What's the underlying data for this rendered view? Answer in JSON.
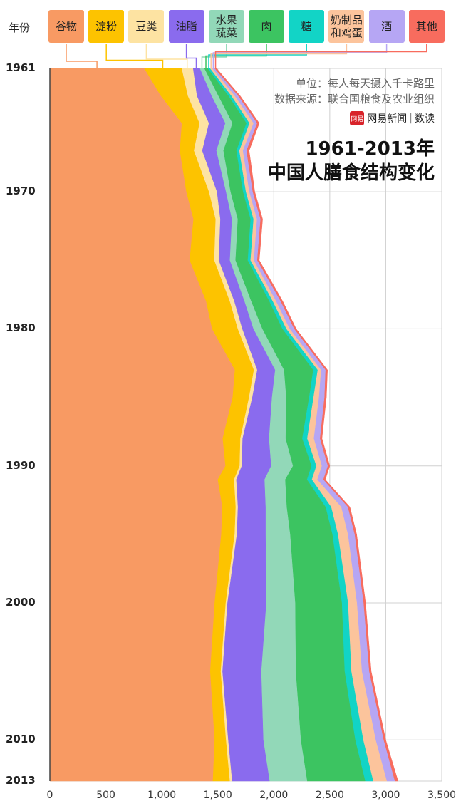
{
  "legend_title": "年份",
  "unit_text": "单位：每人每天摄入千卡路里",
  "source_text": "数据来源：联合国粮食及农业组织",
  "brand": {
    "logo": "网易",
    "name": "网易新闻",
    "column": "数读"
  },
  "title_line1": "1961-2013年",
  "title_line2": "中国人膳食结构变化",
  "chart_data": {
    "type": "area",
    "orientation": "horizontal-stacked",
    "title": "1961-2013年 中国人膳食结构变化",
    "unit": "每人每天摄入千卡路里",
    "y_ticks": [
      "1961",
      "1970",
      "1980",
      "1990",
      "2000",
      "2010",
      "2013"
    ],
    "x_ticks": [
      "0",
      "500",
      "1,000",
      "1,500",
      "2,000",
      "2,500",
      "3,000",
      "3,500"
    ],
    "xlim": [
      0,
      3500
    ],
    "ylim": [
      1961,
      2013
    ],
    "grid": true,
    "legend_position": "top",
    "series": [
      {
        "name": "谷物",
        "color": "#F89A63"
      },
      {
        "name": "淀粉",
        "color": "#FDC300"
      },
      {
        "name": "豆类",
        "color": "#FDE3A2"
      },
      {
        "name": "油脂",
        "color": "#8A6BEE"
      },
      {
        "name": "水果\n蔬菜",
        "color": "#92D8B8"
      },
      {
        "name": "肉",
        "color": "#3CC461"
      },
      {
        "name": "糖",
        "color": "#12D4C6"
      },
      {
        "name": "奶制品\n和鸡蛋",
        "color": "#FCC49C"
      },
      {
        "name": "酒",
        "color": "#B6A6F4"
      },
      {
        "name": "其他",
        "color": "#F86C5E"
      }
    ],
    "years": [
      1961,
      1963,
      1965,
      1967,
      1970,
      1972,
      1975,
      1978,
      1980,
      1983,
      1985,
      1988,
      1990,
      1991,
      1993,
      1995,
      2000,
      2005,
      2010,
      2013
    ],
    "totals": [
      1490,
      1700,
      1870,
      1780,
      1830,
      1900,
      1870,
      2080,
      2200,
      2480,
      2470,
      2430,
      2500,
      2460,
      2680,
      2740,
      2820,
      2870,
      3000,
      3110
    ],
    "values": [
      [
        830,
        980,
        1120,
        1100,
        1200,
        1230,
        1250,
        1380,
        1450,
        1650,
        1670,
        1560,
        1610,
        1540,
        1550,
        1540,
        1480,
        1440,
        1450,
        1430
      ],
      [
        330,
        240,
        150,
        120,
        200,
        190,
        220,
        210,
        230,
        170,
        150,
        160,
        130,
        150,
        120,
        120,
        100,
        95,
        100,
        150
      ],
      [
        100,
        80,
        80,
        70,
        70,
        40,
        40,
        40,
        40,
        30,
        30,
        20,
        20,
        20,
        20,
        20,
        15,
        15,
        20,
        20
      ],
      [
        60,
        130,
        140,
        120,
        80,
        100,
        100,
        90,
        100,
        160,
        180,
        240,
        270,
        260,
        250,
        260,
        350,
        350,
        310,
        330
      ],
      [
        40,
        60,
        60,
        60,
        40,
        50,
        50,
        60,
        80,
        80,
        130,
        150,
        200,
        190,
        190,
        220,
        260,
        310,
        330,
        330
      ],
      [
        30,
        90,
        120,
        110,
        110,
        110,
        110,
        160,
        180,
        260,
        210,
        150,
        170,
        200,
        350,
        380,
        420,
        440,
        480,
        510
      ],
      [
        20,
        25,
        25,
        25,
        25,
        25,
        25,
        30,
        35,
        40,
        40,
        45,
        45,
        45,
        50,
        50,
        55,
        60,
        70,
        70
      ],
      [
        20,
        30,
        35,
        30,
        30,
        30,
        30,
        30,
        30,
        30,
        50,
        60,
        50,
        50,
        90,
        90,
        80,
        95,
        110,
        120
      ],
      [
        20,
        30,
        30,
        30,
        30,
        30,
        30,
        40,
        40,
        40,
        50,
        55,
        55,
        55,
        60,
        60,
        60,
        65,
        70,
        70
      ],
      [
        20,
        20,
        20,
        25,
        20,
        20,
        20,
        20,
        20,
        20,
        20,
        20,
        20,
        20,
        20,
        20,
        20,
        20,
        20,
        30
      ]
    ]
  }
}
